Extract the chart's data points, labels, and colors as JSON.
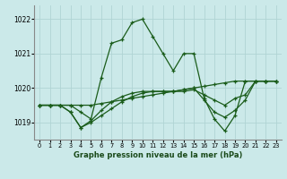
{
  "title": "Graphe pression niveau de la mer (hPa)",
  "background_color": "#cbe9e9",
  "grid_color": "#b0d4d4",
  "line_color": "#1a5c1a",
  "xlim": [
    -0.5,
    23.5
  ],
  "ylim": [
    1018.5,
    1022.4
  ],
  "yticks": [
    1019,
    1020,
    1021,
    1022
  ],
  "xticks": [
    0,
    1,
    2,
    3,
    4,
    5,
    6,
    7,
    8,
    9,
    10,
    11,
    12,
    13,
    14,
    15,
    16,
    17,
    18,
    19,
    20,
    21,
    22,
    23
  ],
  "series": [
    [
      1019.5,
      1019.5,
      1019.5,
      1019.5,
      1019.3,
      1019.1,
      1020.3,
      1021.3,
      1021.4,
      1021.9,
      1022.0,
      1021.5,
      1021.0,
      1020.5,
      1021.0,
      1021.0,
      1019.7,
      1019.1,
      1018.75,
      1019.2,
      1020.2,
      1020.2,
      1020.2,
      1020.2
    ],
    [
      1019.5,
      1019.5,
      1019.5,
      1019.5,
      1019.5,
      1019.5,
      1019.55,
      1019.6,
      1019.65,
      1019.7,
      1019.75,
      1019.8,
      1019.85,
      1019.9,
      1019.95,
      1020.0,
      1020.05,
      1020.1,
      1020.15,
      1020.2,
      1020.2,
      1020.2,
      1020.2,
      1020.2
    ],
    [
      1019.5,
      1019.5,
      1019.5,
      1019.3,
      1018.85,
      1019.0,
      1019.2,
      1019.4,
      1019.6,
      1019.75,
      1019.85,
      1019.9,
      1019.9,
      1019.9,
      1019.95,
      1020.0,
      1019.65,
      1019.3,
      1019.15,
      1019.35,
      1019.65,
      1020.2,
      1020.2,
      1020.2
    ],
    [
      1019.5,
      1019.5,
      1019.5,
      1019.3,
      1018.85,
      1019.05,
      1019.35,
      1019.6,
      1019.75,
      1019.85,
      1019.9,
      1019.9,
      1019.9,
      1019.9,
      1019.9,
      1019.95,
      1019.8,
      1019.65,
      1019.5,
      1019.7,
      1019.8,
      1020.2,
      1020.2,
      1020.2
    ]
  ]
}
